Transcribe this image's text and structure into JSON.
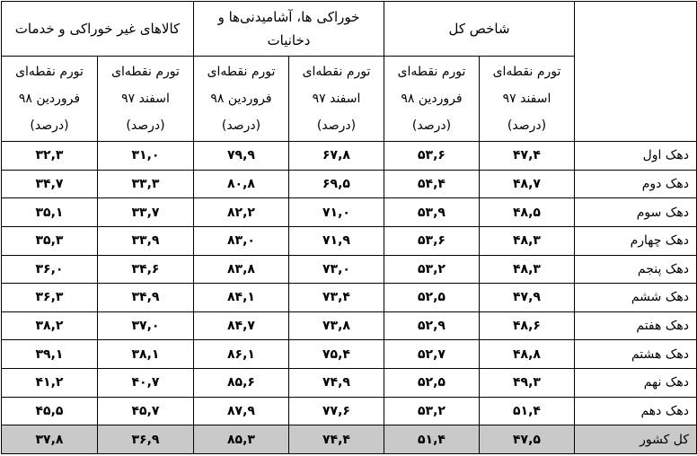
{
  "header": {
    "groups": [
      "شاخص کل",
      "خوراکی ها، آشامیدنی‌ها و دخانیات",
      "کالاهای غیر خوراکی و خدمات"
    ],
    "subcols": [
      {
        "line1": "تورم نقطه‌ای",
        "line2": "اسفند ۹۷",
        "line3": "(درصد)"
      },
      {
        "line1": "تورم نقطه‌ای",
        "line2": "فروردین ۹۸",
        "line3": "(درصد)"
      },
      {
        "line1": "تورم نقطه‌ای",
        "line2": "اسفند ۹۷",
        "line3": "(درصد)"
      },
      {
        "line1": "تورم نقطه‌ای",
        "line2": "فروردین ۹۸",
        "line3": "(درصد)"
      },
      {
        "line1": "تورم نقطه‌ای",
        "line2": "اسفند ۹۷",
        "line3": "(درصد)"
      },
      {
        "line1": "تورم نقطه‌ای",
        "line2": "فروردین ۹۸",
        "line3": "(درصد)"
      }
    ]
  },
  "rows": [
    {
      "label": "دهک اول",
      "values": [
        "۴۷,۴",
        "۵۳,۶",
        "۶۷,۸",
        "۷۹,۹",
        "۳۱,۰",
        "۳۲,۳"
      ]
    },
    {
      "label": "دهک دوم",
      "values": [
        "۴۸,۷",
        "۵۴,۴",
        "۶۹,۵",
        "۸۰,۸",
        "۳۳,۳",
        "۳۴,۷"
      ]
    },
    {
      "label": "دهک سوم",
      "values": [
        "۴۸,۵",
        "۵۳,۹",
        "۷۱,۰",
        "۸۲,۲",
        "۳۳,۷",
        "۳۵,۱"
      ]
    },
    {
      "label": "دهک چهارم",
      "values": [
        "۴۸,۳",
        "۵۳,۶",
        "۷۱,۹",
        "۸۳,۰",
        "۳۳,۹",
        "۳۵,۳"
      ]
    },
    {
      "label": "دهک پنجم",
      "values": [
        "۴۸,۳",
        "۵۳,۲",
        "۷۳,۰",
        "۸۳,۸",
        "۳۴,۶",
        "۳۶,۰"
      ]
    },
    {
      "label": "دهک ششم",
      "values": [
        "۴۷,۹",
        "۵۲,۵",
        "۷۳,۴",
        "۸۴,۱",
        "۳۴,۹",
        "۳۶,۳"
      ]
    },
    {
      "label": "دهک هفتم",
      "values": [
        "۴۸,۶",
        "۵۲,۹",
        "۷۳,۸",
        "۸۴,۷",
        "۳۷,۰",
        "۳۸,۲"
      ]
    },
    {
      "label": "دهک هشتم",
      "values": [
        "۴۸,۸",
        "۵۲,۷",
        "۷۵,۴",
        "۸۶,۱",
        "۳۸,۱",
        "۳۹,۱"
      ]
    },
    {
      "label": "دهک نهم",
      "values": [
        "۴۹,۳",
        "۵۲,۵",
        "۷۴,۹",
        "۸۵,۶",
        "۴۰,۷",
        "۴۱,۲"
      ]
    },
    {
      "label": "دهک دهم",
      "values": [
        "۵۱,۴",
        "۵۳,۲",
        "۷۷,۶",
        "۸۷,۹",
        "۴۵,۷",
        "۴۵,۵"
      ]
    }
  ],
  "total": {
    "label": "کل کشور",
    "values": [
      "۴۷,۵",
      "۵۱,۴",
      "۷۴,۴",
      "۸۵,۳",
      "۳۶,۹",
      "۳۷,۸"
    ]
  },
  "colors": {
    "total_row_bg": "#c9c9c9",
    "border": "#000000"
  }
}
